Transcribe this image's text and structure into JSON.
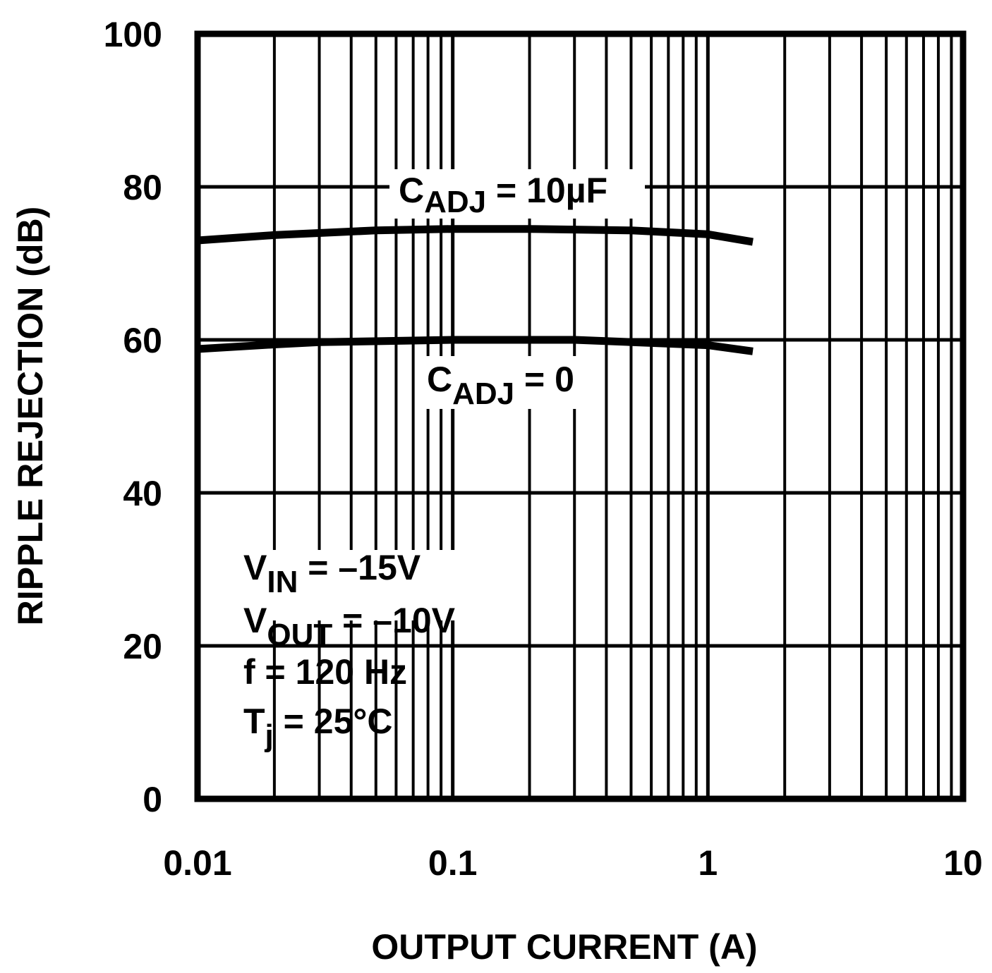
{
  "chart_data": {
    "type": "line",
    "x_label": "OUTPUT CURRENT (A)",
    "y_label": "RIPPLE REJECTION (dB)",
    "log_x": true,
    "grid": true,
    "xlim": [
      0.01,
      10
    ],
    "xticks": [
      0.01,
      0.1,
      1,
      10
    ],
    "ylim": [
      0,
      100
    ],
    "yticks": [
      0,
      20,
      40,
      60,
      80,
      100
    ],
    "series": [
      {
        "name": "C_ADJ = 10µF",
        "color": "#000000",
        "x": [
          0.01,
          0.02,
          0.05,
          0.1,
          0.2,
          0.5,
          1,
          1.5
        ],
        "values": [
          73,
          73.7,
          74.3,
          74.5,
          74.5,
          74.3,
          73.8,
          72.8
        ]
      },
      {
        "name": "C_ADJ = 0",
        "color": "#000000",
        "x": [
          0.01,
          0.02,
          0.03,
          0.1,
          0.3,
          1,
          1.5
        ],
        "values": [
          58.8,
          59.4,
          59.7,
          60,
          60,
          59.3,
          58.5
        ]
      }
    ],
    "annotations": [
      {
        "main": "C",
        "sub": "ADJ",
        "tail": " = 10µF"
      },
      {
        "main": "C",
        "sub": "ADJ",
        "tail": " = 0"
      },
      {
        "main": "V",
        "sub": "IN",
        "tail": " = –15V"
      },
      {
        "main": "V",
        "sub": "OUT",
        "tail": " = –10V"
      },
      {
        "main": "f = 120 Hz"
      },
      {
        "main": "T",
        "sub": "j",
        "tail": " = 25°C"
      }
    ]
  }
}
